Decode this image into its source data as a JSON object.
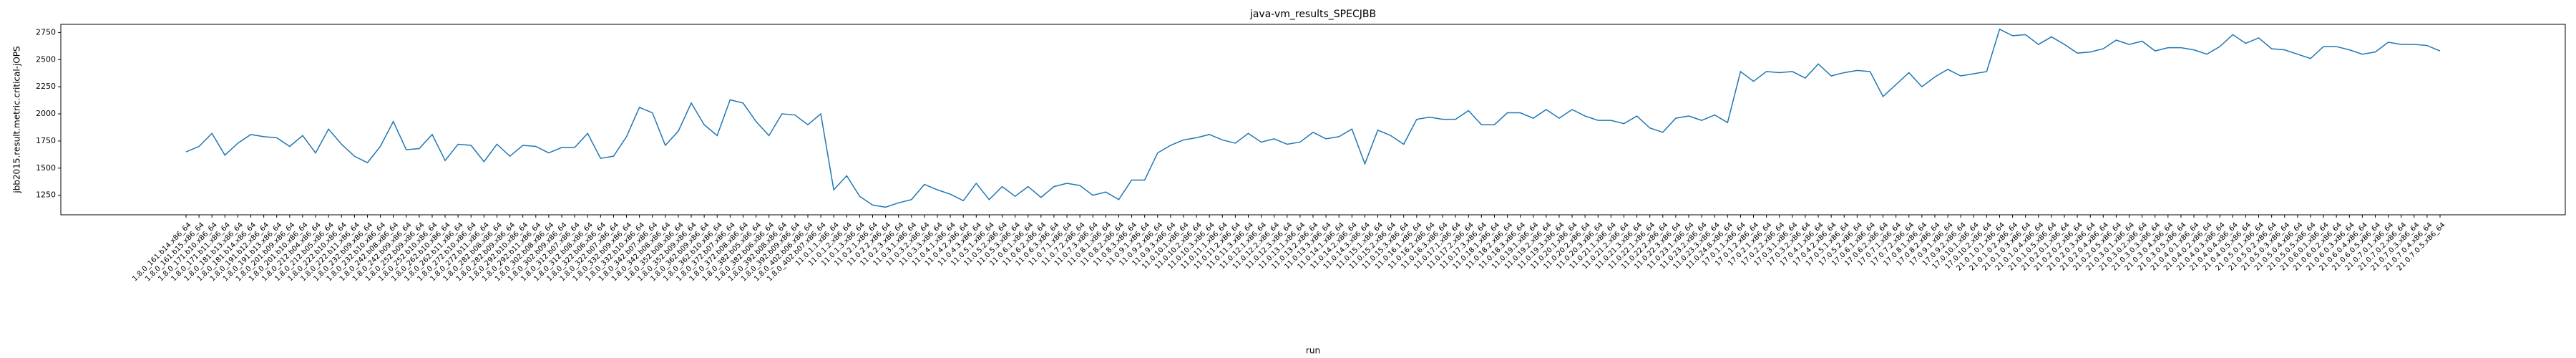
{
  "chart_data": {
    "type": "line",
    "title": "java-vm_results_SPECJBB",
    "x_label": "run",
    "y_label": "jbb2015.result.metric.critical-jOPS",
    "categories": [
      "1.8.0_161.b14.x86_64",
      "1.8.0_161.b15.x86_64",
      "1.8.0_171.b10.x86_64",
      "1.8.0_171.b11.x86_64",
      "1.8.0_181.b13.x86_64",
      "1.8.0_181.b14.x86_64",
      "1.8.0_191.b12.x86_64",
      "1.8.0_191.b13.x86_64",
      "1.8.0_201.b09.x86_64",
      "1.8.0_201.b10.x86_64",
      "1.8.0_212.b04.x86_64",
      "1.8.0_212.b05.x86_64",
      "1.8.0_222.b10.x86_64",
      "1.8.0_222.b11.x86_64",
      "1.8.0_232.b09.x86_64",
      "1.8.0_232.b10.x86_64",
      "1.8.0_242.b08.x86_64",
      "1.8.0_242.b09.x86_64",
      "1.8.0_252.b09.x86_64",
      "1.8.0_252.b10.x86_64",
      "1.8.0_262.b10.x86_64",
      "1.8.0_262.b11.x86_64",
      "1.8.0_272.b10.x86_64",
      "1.8.0_272.b11.x86_64",
      "1.8.0_282.b08.x86_64",
      "1.8.0_282.b09.x86_64",
      "1.8.0_292.b10.x86_64",
      "1.8.0_292.b11.x86_64",
      "1.8.0_302.b08.x86_64",
      "1.8.0_302.b09.x86_64",
      "1.8.0_312.b07.x86_64",
      "1.8.0_312.b08.x86_64",
      "1.8.0_322.b06.x86_64",
      "1.8.0_322.b07.x86_64",
      "1.8.0_332.b09.x86_64",
      "1.8.0_332.b10.x86_64",
      "1.8.0_342.b07.x86_64",
      "1.8.0_342.b08.x86_64",
      "1.8.0_352.b08.x86_64",
      "1.8.0_352.b09.x86_64",
      "1.8.0_362.b09.x86_64",
      "1.8.0_362.b10.x86_64",
      "1.8.0_372.b07.x86_64",
      "1.8.0_372.b08.x86_64",
      "1.8.0_382.b05.x86_64",
      "1.8.0_382.b06.x86_64",
      "1.8.0_392.b08.x86_64",
      "1.8.0_392.b09.x86_64",
      "1.8.0_402.b06.x86_64",
      "1.8.0_402.b07.x86_64",
      "11.0.1.1.x86_64",
      "11.0.1.2.x86_64",
      "11.0.1.3.x86_64",
      "11.0.2.1.x86_64",
      "11.0.2.2.x86_64",
      "11.0.2.3.x86_64",
      "11.0.3.1.x86_64",
      "11.0.3.2.x86_64",
      "11.0.3.3.x86_64",
      "11.0.4.1.x86_64",
      "11.0.4.2.x86_64",
      "11.0.4.3.x86_64",
      "11.0.5.1.x86_64",
      "11.0.5.2.x86_64",
      "11.0.5.3.x86_64",
      "11.0.6.1.x86_64",
      "11.0.6.2.x86_64",
      "11.0.6.3.x86_64",
      "11.0.7.1.x86_64",
      "11.0.7.2.x86_64",
      "11.0.7.3.x86_64",
      "11.0.8.1.x86_64",
      "11.0.8.2.x86_64",
      "11.0.8.3.x86_64",
      "11.0.9.1.x86_64",
      "11.0.9.2.x86_64",
      "11.0.9.3.x86_64",
      "11.0.10.1.x86_64",
      "11.0.10.2.x86_64",
      "11.0.10.3.x86_64",
      "11.0.11.1.x86_64",
      "11.0.11.2.x86_64",
      "11.0.11.3.x86_64",
      "11.0.12.1.x86_64",
      "11.0.12.2.x86_64",
      "11.0.12.3.x86_64",
      "11.0.13.1.x86_64",
      "11.0.13.2.x86_64",
      "11.0.13.3.x86_64",
      "11.0.14.1.x86_64",
      "11.0.14.2.x86_64",
      "11.0.14.3.x86_64",
      "11.0.15.1.x86_64",
      "11.0.15.2.x86_64",
      "11.0.15.3.x86_64",
      "11.0.16.1.x86_64",
      "11.0.16.2.x86_64",
      "11.0.16.3.x86_64",
      "11.0.17.1.x86_64",
      "11.0.17.2.x86_64",
      "11.0.17.3.x86_64",
      "11.0.18.1.x86_64",
      "11.0.18.2.x86_64",
      "11.0.18.3.x86_64",
      "11.0.19.1.x86_64",
      "11.0.19.2.x86_64",
      "11.0.19.3.x86_64",
      "11.0.20.1.x86_64",
      "11.0.20.2.x86_64",
      "11.0.20.3.x86_64",
      "11.0.21.1.x86_64",
      "11.0.21.2.x86_64",
      "11.0.21.3.x86_64",
      "11.0.22.1.x86_64",
      "11.0.22.2.x86_64",
      "11.0.22.3.x86_64",
      "11.0.23.1.x86_64",
      "11.0.23.2.x86_64",
      "11.0.23.3.x86_64",
      "11.0.24.8.x86_64",
      "17.0.1.1.x86_64",
      "17.0.1.2.x86_64",
      "17.0.2.1.x86_64",
      "17.0.2.2.x86_64",
      "17.0.3.1.x86_64",
      "17.0.3.2.x86_64",
      "17.0.4.1.x86_64",
      "17.0.4.2.x86_64",
      "17.0.5.1.x86_64",
      "17.0.5.2.x86_64",
      "17.0.6.1.x86_64",
      "17.0.6.2.x86_64",
      "17.0.7.1.x86_64",
      "17.0.7.2.x86_64",
      "17.0.8.1.x86_64",
      "17.0.8.2.x86_64",
      "17.0.9.1.x86_64",
      "17.0.9.2.x86_64",
      "17.0.10.1.x86_64",
      "17.0.10.2.x86_64",
      "21.0.1.0.1.x86_64",
      "21.0.1.0.2.x86_64",
      "21.0.1.0.3.x86_64",
      "21.0.1.0.4.x86_64",
      "21.0.1.0.5.x86_64",
      "21.0.2.0.1.x86_64",
      "21.0.2.0.2.x86_64",
      "21.0.2.0.3.x86_64",
      "21.0.2.0.4.x86_64",
      "21.0.2.0.5.x86_64",
      "21.0.3.0.1.x86_64",
      "21.0.3.0.2.x86_64",
      "21.0.3.0.3.x86_64",
      "21.0.3.0.4.x86_64",
      "21.0.3.0.5.x86_64",
      "21.0.4.0.1.x86_64",
      "21.0.4.0.2.x86_64",
      "21.0.4.0.3.x86_64",
      "21.0.4.0.4.x86_64",
      "21.0.4.0.5.x86_64",
      "21.0.5.0.1.x86_64",
      "21.0.5.0.2.x86_64",
      "21.0.5.0.3.x86_64",
      "21.0.5.0.4.x86_64",
      "21.0.5.0.5.x86_64",
      "21.0.6.0.1.x86_64",
      "21.0.6.0.2.x86_64",
      "21.0.6.0.3.x86_64",
      "21.0.6.0.4.x86_64",
      "21.0.6.0.5.x86_64",
      "21.0.7.0.1.x86_64",
      "21.0.7.0.2.x86_64",
      "21.0.7.0.3.x86_64",
      "21.0.7.0.4.x86_64",
      "21.0.7.0.5.x86_64"
    ],
    "values": [
      1650,
      1700,
      1820,
      1620,
      1730,
      1810,
      1790,
      1780,
      1700,
      1800,
      1640,
      1860,
      1720,
      1610,
      1550,
      1700,
      1930,
      1670,
      1680,
      1810,
      1570,
      1720,
      1710,
      1560,
      1720,
      1610,
      1710,
      1700,
      1640,
      1690,
      1690,
      1820,
      1590,
      1610,
      1790,
      2060,
      2010,
      1710,
      1840,
      2100,
      1900,
      1800,
      2130,
      2100,
      1930,
      1800,
      2000,
      1990,
      1900,
      2000,
      1300,
      1430,
      1240,
      1160,
      1140,
      1180,
      1210,
      1350,
      1300,
      1260,
      1200,
      1360,
      1210,
      1330,
      1240,
      1330,
      1230,
      1330,
      1360,
      1340,
      1250,
      1280,
      1210,
      1390,
      1390,
      1640,
      1710,
      1760,
      1780,
      1810,
      1760,
      1730,
      1820,
      1740,
      1770,
      1720,
      1740,
      1830,
      1770,
      1790,
      1860,
      1540,
      1850,
      1800,
      1720,
      1950,
      1970,
      1950,
      1950,
      2030,
      1900,
      1900,
      2010,
      2010,
      1960,
      2040,
      1960,
      2040,
      1980,
      1940,
      1940,
      1910,
      1980,
      1870,
      1830,
      1960,
      1980,
      1940,
      1990,
      1920,
      2390,
      2300,
      2390,
      2380,
      2390,
      2330,
      2460,
      2350,
      2380,
      2400,
      2390,
      2160,
      2270,
      2380,
      2250,
      2340,
      2410,
      2350,
      2370,
      2390,
      2780,
      2720,
      2730,
      2640,
      2710,
      2640,
      2560,
      2570,
      2600,
      2680,
      2640,
      2670,
      2580,
      2610,
      2610,
      2590,
      2550,
      2620,
      2730,
      2650,
      2700,
      2600,
      2590,
      2550,
      2510,
      2620,
      2620,
      2590,
      2550,
      2570,
      2660,
      2640,
      2640,
      2630,
      2580
    ],
    "color": "#1f77b4",
    "ylim": [
      1070,
      2825
    ],
    "yticks": [
      1250,
      1500,
      1750,
      2000,
      2250,
      2500,
      2750
    ]
  }
}
